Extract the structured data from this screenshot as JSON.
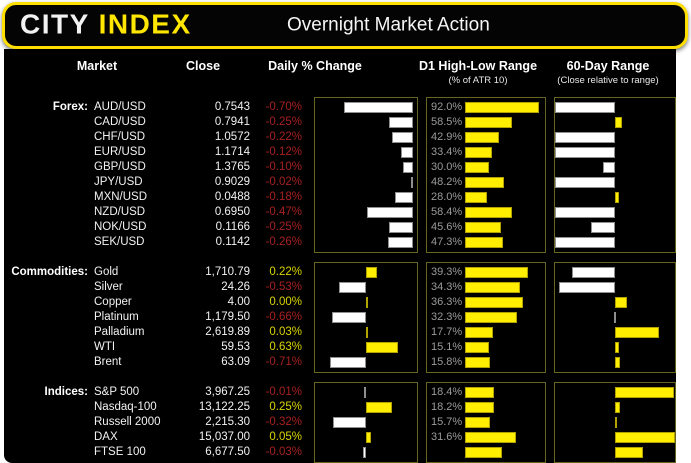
{
  "header": {
    "logo_primary": "CITY ",
    "logo_accent": "INDEX",
    "title": "Overnight Market Action"
  },
  "columns": {
    "market": "Market",
    "close": "Close",
    "daily": "Daily % Change",
    "d1": "D1 High-Low Range",
    "d1_sub": "(% of ATR 10)",
    "range60": "60-Day Range",
    "range60_sub": "(Close relative to range)"
  },
  "colors": {
    "accent_yellow": "#ffe600",
    "bar_yellow": "#ffee00",
    "bar_white": "#ffffff",
    "negative_red": "#a62121",
    "positive_yellow": "#d9d400",
    "d1_label_gray": "#9b9b9b",
    "box_border_olive": "#66661f",
    "background": "#000000"
  },
  "chart_data": {
    "type": "table",
    "description": "Market table with three mini bar charts per row: daily % change (diverging bar, white=negative/yellow=positive), D1 high-low range as % of ATR10 (yellow bar with gray label), and close position within 60-day range (bar drawn from 50% midpoint; white=below midpoint, yellow=above).",
    "daily_axis_note": "per-section daily % axis ranges",
    "d1_axis_note": "per-section D1 bar axis max",
    "range60_axis": [
      0,
      100
    ],
    "sections": [
      {
        "label": "Forex:",
        "daily_axis": [
          -1.0,
          0.04
        ],
        "d1_axis_max": 100,
        "rows": [
          {
            "market": "AUD/USD",
            "close": "0.7543",
            "daily_label": "-0.70%",
            "daily": -0.7,
            "d1_label": "92.0%",
            "d1": 92.0,
            "range60": 0
          },
          {
            "market": "CAD/USD",
            "close": "0.7941",
            "daily_label": "-0.25%",
            "daily": -0.25,
            "d1_label": "58.5%",
            "d1": 58.5,
            "range60": 56
          },
          {
            "market": "CHF/USD",
            "close": "1.0572",
            "daily_label": "-0.22%",
            "daily": -0.22,
            "d1_label": "42.9%",
            "d1": 42.9,
            "range60": 0
          },
          {
            "market": "EUR/USD",
            "close": "1.1714",
            "daily_label": "-0.12%",
            "daily": -0.12,
            "d1_label": "33.4%",
            "d1": 33.4,
            "range60": 0
          },
          {
            "market": "GBP/USD",
            "close": "1.3765",
            "daily_label": "-0.10%",
            "daily": -0.1,
            "d1_label": "30.0%",
            "d1": 30.0,
            "range60": 40
          },
          {
            "market": "JPY/USD",
            "close": "0.9029",
            "daily_label": "-0.02%",
            "daily": -0.02,
            "d1_label": "48.2%",
            "d1": 48.2,
            "range60": 0
          },
          {
            "market": "MXN/USD",
            "close": "0.0488",
            "daily_label": "-0.18%",
            "daily": -0.18,
            "d1_label": "28.0%",
            "d1": 28.0,
            "range60": 53
          },
          {
            "market": "NZD/USD",
            "close": "0.6950",
            "daily_label": "-0.47%",
            "daily": -0.47,
            "d1_label": "58.4%",
            "d1": 58.4,
            "range60": 0
          },
          {
            "market": "NOK/USD",
            "close": "0.1166",
            "daily_label": "-0.25%",
            "daily": -0.25,
            "d1_label": "45.6%",
            "d1": 45.6,
            "range60": 30
          },
          {
            "market": "SEK/USD",
            "close": "0.1142",
            "daily_label": "-0.26%",
            "daily": -0.26,
            "d1_label": "47.3%",
            "d1": 47.3,
            "range60": 0
          }
        ]
      },
      {
        "label": "Commodities:",
        "daily_axis": [
          -1.0,
          1.0
        ],
        "d1_axis_max": 50,
        "rows": [
          {
            "market": "Gold",
            "close": "1,710.79",
            "daily_label": "0.22%",
            "daily": 0.22,
            "d1_label": "39.3%",
            "d1": 39.3,
            "range60": 14
          },
          {
            "market": "Silver",
            "close": "24.26",
            "daily_label": "-0.53%",
            "daily": -0.53,
            "d1_label": "34.3%",
            "d1": 34.3,
            "range60": 3
          },
          {
            "market": "Copper",
            "close": "4.00",
            "daily_label": "0.00%",
            "daily": 0.0,
            "d1_label": "36.3%",
            "d1": 36.3,
            "range60": 60
          },
          {
            "market": "Platinum",
            "close": "1,179.50",
            "daily_label": "-0.66%",
            "daily": -0.66,
            "d1_label": "32.3%",
            "d1": 32.3,
            "range60": 49
          },
          {
            "market": "Palladium",
            "close": "2,619.89",
            "daily_label": "0.03%",
            "daily": 0.03,
            "d1_label": "17.7%",
            "d1": 17.7,
            "range60": 87
          },
          {
            "market": "WTI",
            "close": "59.53",
            "daily_label": "0.63%",
            "daily": 0.63,
            "d1_label": "15.1%",
            "d1": 15.1,
            "range60": 53
          },
          {
            "market": "Brent",
            "close": "63.09",
            "daily_label": "-0.71%",
            "daily": -0.71,
            "d1_label": "15.8%",
            "d1": 15.8,
            "range60": 54
          }
        ]
      },
      {
        "label": "Indices:",
        "daily_axis": [
          -0.5,
          0.5
        ],
        "d1_axis_max": 50,
        "rows": [
          {
            "market": "S&P 500",
            "close": "3,967.25",
            "daily_label": "-0.01%",
            "daily": -0.01,
            "d1_label": "18.4%",
            "d1": 18.4,
            "range60": 99
          },
          {
            "market": "Nasdaq-100",
            "close": "13,122.25",
            "daily_label": "0.25%",
            "daily": 0.25,
            "d1_label": "18.2%",
            "d1": 18.2,
            "range60": 54
          },
          {
            "market": "Russell 2000",
            "close": "2,215.30",
            "daily_label": "-0.32%",
            "daily": -0.32,
            "d1_label": "15.7%",
            "d1": 15.7,
            "range60": 51
          },
          {
            "market": "DAX",
            "close": "15,037.00",
            "daily_label": "0.05%",
            "daily": 0.05,
            "d1_label": "31.6%",
            "d1": 31.6,
            "range60": 100
          },
          {
            "market": "FTSE 100",
            "close": "6,677.50",
            "daily_label": "-0.03%",
            "daily": -0.03,
            "d1_label": "",
            "d1": 23.0,
            "range60": 73
          }
        ]
      }
    ]
  }
}
